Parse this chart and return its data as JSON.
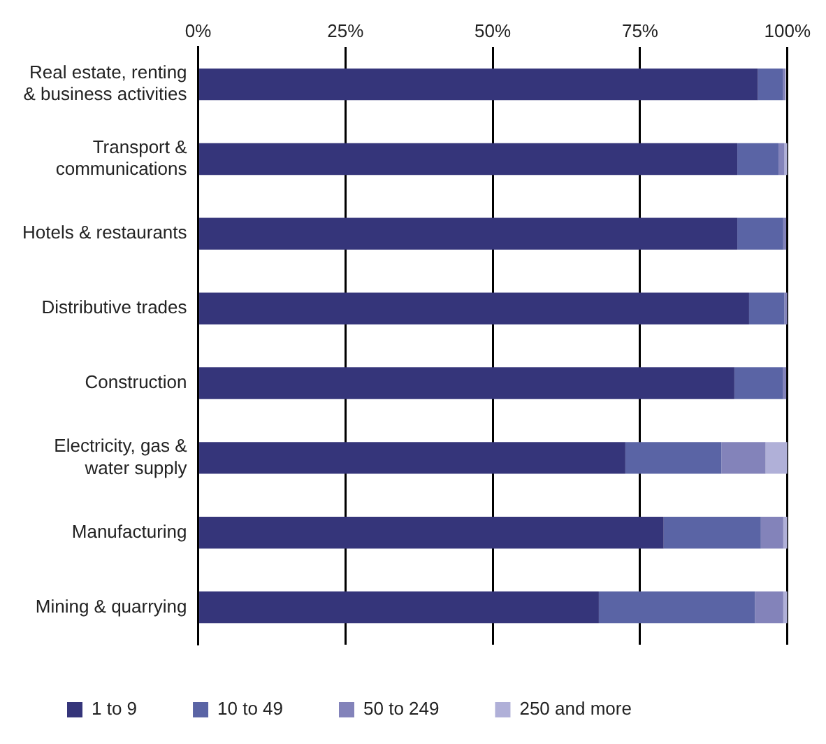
{
  "chart_data": {
    "type": "bar",
    "orientation": "horizontal",
    "stacked": true,
    "categories": [
      "Real estate, renting & business activities",
      "Transport & communications",
      "Hotels & restaurants",
      "Distributive trades",
      "Construction",
      "Electricity, gas & water supply",
      "Manufacturing",
      "Mining & quarrying"
    ],
    "series": [
      {
        "name": "1 to 9",
        "color": "#35357a",
        "values": [
          95,
          91.5,
          91.5,
          93.5,
          91,
          72.5,
          79,
          68
        ]
      },
      {
        "name": "10 to 49",
        "color": "#5a64a5",
        "values": [
          4.2,
          7,
          7.8,
          6,
          8.2,
          16.3,
          16.5,
          26.5
        ]
      },
      {
        "name": "50 to 249",
        "color": "#8383ba",
        "values": [
          0.5,
          1,
          0.5,
          0.5,
          0.6,
          7.5,
          3.8,
          4.8
        ]
      },
      {
        "name": "250 and more",
        "color": "#b0b0d8",
        "values": [
          null,
          0.5,
          null,
          null,
          null,
          3.7,
          0.7,
          0.7
        ]
      }
    ],
    "xlim": [
      0,
      100
    ],
    "xticks": [
      {
        "value": 0,
        "label": "0%"
      },
      {
        "value": 25,
        "label": "25%"
      },
      {
        "value": 50,
        "label": "50%"
      },
      {
        "value": 75,
        "label": "75%"
      },
      {
        "value": 100,
        "label": "100%"
      }
    ],
    "grid": "x",
    "legend": "bottom"
  }
}
